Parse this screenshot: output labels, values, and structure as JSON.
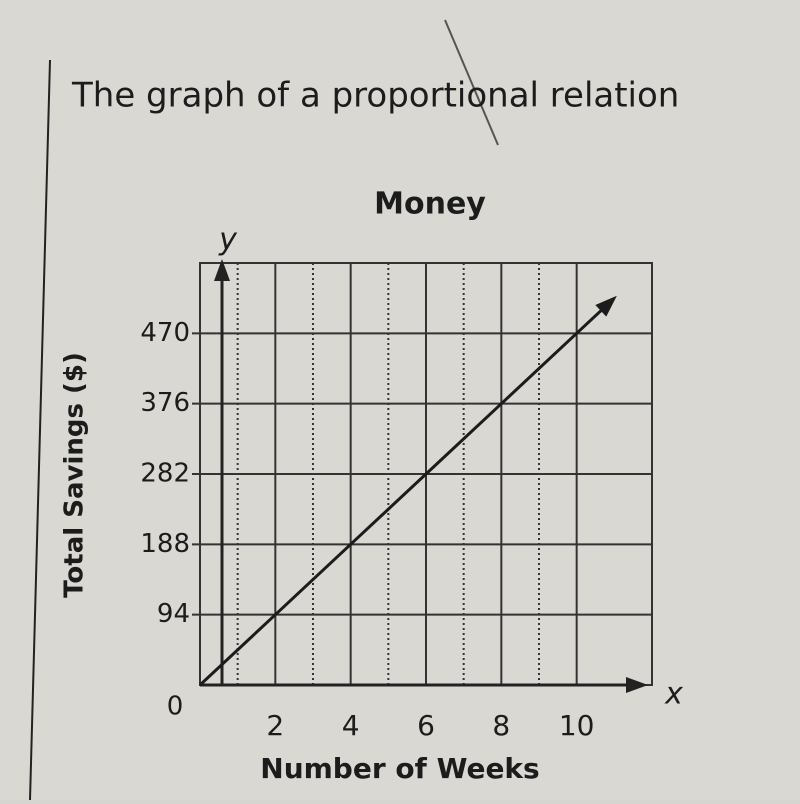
{
  "header": {
    "text": "The graph of a proportional relation"
  },
  "chart_data": {
    "type": "line",
    "title": "Money",
    "x_label": "Number of Weeks",
    "y_label": "Total Savings ($)",
    "x_axis_letter": "x",
    "y_axis_letter": "y",
    "x": [
      0,
      2,
      4,
      6,
      8,
      10
    ],
    "series": [
      {
        "name": "Total Savings",
        "color": "#1c1c1c",
        "values": [
          0,
          94,
          188,
          282,
          376,
          470
        ]
      }
    ],
    "xlim": [
      0,
      12
    ],
    "ylim": [
      0,
      564
    ],
    "xticks": [
      0,
      2,
      4,
      6,
      8,
      10
    ],
    "yticks": [
      94,
      188,
      282,
      376,
      470
    ],
    "minor_xticks": [
      1,
      3,
      5,
      7,
      9
    ],
    "grid": true
  }
}
